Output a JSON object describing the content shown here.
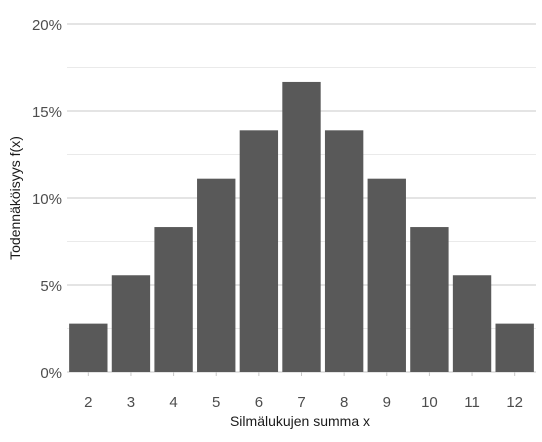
{
  "chart_data": {
    "type": "bar",
    "title": "",
    "xlabel": "Silmälukujen summa x",
    "ylabel": "Todennäköisyys f(x)",
    "categories": [
      "2",
      "3",
      "4",
      "5",
      "6",
      "7",
      "8",
      "9",
      "10",
      "11",
      "12"
    ],
    "values": [
      0.0278,
      0.0556,
      0.0833,
      0.1111,
      0.1389,
      0.1667,
      0.1389,
      0.1111,
      0.0833,
      0.0556,
      0.0278
    ],
    "ylim": [
      0,
      0.2
    ],
    "y_ticks": [
      0,
      0.05,
      0.1,
      0.15,
      0.2
    ],
    "y_tick_labels": [
      "0%",
      "5%",
      "10%",
      "15%",
      "20%"
    ],
    "y_minor_gridlines": [
      0.025,
      0.075,
      0.125,
      0.175
    ],
    "grid": "horizontal",
    "legend": "none",
    "colors": {
      "bar": "#595959",
      "grid_major": "#c8c8c8",
      "grid_minor": "#e3e3e3",
      "tick_text": "#4d4d4d",
      "axis_title": "#1a1a1a"
    }
  }
}
